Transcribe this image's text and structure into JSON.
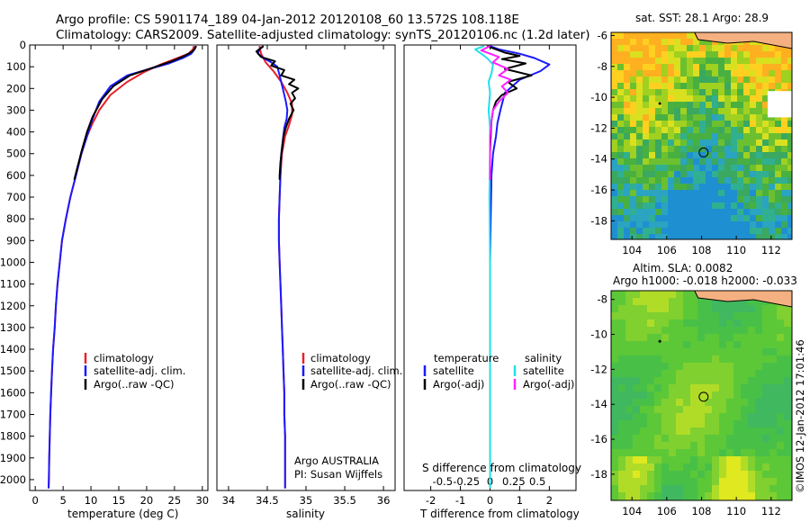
{
  "header": {
    "line1": "Argo profile: CS 5901174_189 04-Jan-2012 20120108_60 13.572S 108.118E",
    "line2": "Climatology: CARS2009. Satellite-adjusted climatology: synTS_20120106.nc (1.2d later)"
  },
  "colors": {
    "climatology": "#e8202a",
    "satellite": "#1a1aff",
    "argo": "#000000",
    "sal_satellite": "#22e0e8",
    "sal_argo": "#ff22ff"
  },
  "chart_data": [
    {
      "id": "temperature",
      "type": "line",
      "xlabel": "temperature (deg C)",
      "xlim": [
        -1,
        31
      ],
      "ylim": [
        2050,
        0
      ],
      "xticks": [
        0,
        5,
        10,
        15,
        20,
        25,
        30
      ],
      "yticks": [
        0,
        100,
        200,
        300,
        400,
        500,
        600,
        700,
        800,
        900,
        1000,
        1100,
        1200,
        1300,
        1400,
        1500,
        1600,
        1700,
        1800,
        1900,
        2000
      ],
      "legend": [
        "climatology",
        "satellite-adj. clim.",
        "Argo(..raw -QC)"
      ],
      "series": [
        {
          "name": "climatology",
          "color_key": "climatology",
          "points": [
            [
              28.5,
              5
            ],
            [
              28.3,
              20
            ],
            [
              27.5,
              40
            ],
            [
              25.5,
              60
            ],
            [
              22.5,
              90
            ],
            [
              19.5,
              125
            ],
            [
              16.5,
              170
            ],
            [
              13.5,
              230
            ],
            [
              11.5,
              300
            ],
            [
              10.3,
              360
            ],
            [
              9.3,
              420
            ],
            [
              8.3,
              500
            ],
            [
              7.3,
              600
            ],
            [
              6.3,
              700
            ],
            [
              5.5,
              800
            ],
            [
              4.8,
              900
            ],
            [
              4.4,
              1000
            ],
            [
              4.0,
              1100
            ],
            [
              3.7,
              1200
            ],
            [
              3.5,
              1300
            ],
            [
              3.2,
              1400
            ],
            [
              3.0,
              1500
            ],
            [
              2.85,
              1600
            ],
            [
              2.7,
              1700
            ],
            [
              2.6,
              1800
            ],
            [
              2.5,
              1900
            ],
            [
              2.45,
              2000
            ],
            [
              2.4,
              2040
            ]
          ]
        },
        {
          "name": "satellite-adj. clim.",
          "color_key": "satellite",
          "points": [
            [
              28.8,
              5
            ],
            [
              28.6,
              20
            ],
            [
              28.0,
              40
            ],
            [
              26.5,
              60
            ],
            [
              24.0,
              85
            ],
            [
              20.5,
              110
            ],
            [
              16.5,
              140
            ],
            [
              13.5,
              190
            ],
            [
              11.5,
              260
            ],
            [
              10.3,
              340
            ],
            [
              9.3,
              420
            ],
            [
              8.3,
              500
            ],
            [
              7.3,
              600
            ],
            [
              6.3,
              700
            ],
            [
              5.5,
              800
            ],
            [
              4.8,
              900
            ],
            [
              4.4,
              1000
            ],
            [
              4.0,
              1100
            ],
            [
              3.7,
              1200
            ],
            [
              3.5,
              1300
            ],
            [
              3.2,
              1400
            ],
            [
              3.0,
              1500
            ],
            [
              2.85,
              1600
            ],
            [
              2.7,
              1700
            ],
            [
              2.6,
              1800
            ],
            [
              2.5,
              1900
            ],
            [
              2.45,
              2000
            ],
            [
              2.4,
              2040
            ]
          ]
        },
        {
          "name": "Argo(..raw -QC)",
          "color_key": "argo",
          "points": [
            [
              28.9,
              5
            ],
            [
              28.7,
              15
            ],
            [
              28.2,
              30
            ],
            [
              26.8,
              50
            ],
            [
              24.5,
              75
            ],
            [
              21.0,
              105
            ],
            [
              17.0,
              140
            ],
            [
              14.0,
              190
            ],
            [
              12.0,
              250
            ],
            [
              10.3,
              330
            ],
            [
              9.3,
              400
            ],
            [
              8.4,
              480
            ],
            [
              7.6,
              560
            ],
            [
              7.0,
              620
            ]
          ]
        }
      ]
    },
    {
      "id": "salinity",
      "type": "line",
      "xlabel": "salinity",
      "xlim": [
        33.85,
        36.15
      ],
      "ylim": [
        2050,
        0
      ],
      "xticks": [
        34,
        34.5,
        35,
        35.5,
        36
      ],
      "legend": [
        "climatology",
        "satellite-adj. clim.",
        "Argo(..raw -QC)"
      ],
      "annotation": [
        "Argo AUSTRALIA",
        "PI: Susan Wijffels"
      ],
      "series": [
        {
          "name": "climatology",
          "color_key": "climatology",
          "points": [
            [
              34.4,
              5
            ],
            [
              34.42,
              40
            ],
            [
              34.48,
              80
            ],
            [
              34.58,
              120
            ],
            [
              34.68,
              170
            ],
            [
              34.76,
              220
            ],
            [
              34.82,
              270
            ],
            [
              34.82,
              320
            ],
            [
              34.78,
              370
            ],
            [
              34.73,
              420
            ],
            [
              34.69,
              500
            ],
            [
              34.67,
              600
            ],
            [
              34.66,
              700
            ],
            [
              34.65,
              800
            ],
            [
              34.65,
              900
            ],
            [
              34.66,
              1000
            ],
            [
              34.67,
              1100
            ],
            [
              34.68,
              1200
            ],
            [
              34.69,
              1300
            ],
            [
              34.7,
              1400
            ],
            [
              34.71,
              1500
            ],
            [
              34.72,
              1600
            ],
            [
              34.72,
              1700
            ],
            [
              34.73,
              1800
            ],
            [
              34.73,
              1900
            ],
            [
              34.73,
              2000
            ],
            [
              34.73,
              2040
            ]
          ]
        },
        {
          "name": "satellite-adj. clim.",
          "color_key": "satellite",
          "points": [
            [
              34.45,
              5
            ],
            [
              34.4,
              20
            ],
            [
              34.38,
              40
            ],
            [
              34.45,
              60
            ],
            [
              34.55,
              80
            ],
            [
              34.63,
              100
            ],
            [
              34.66,
              140
            ],
            [
              34.7,
              200
            ],
            [
              34.74,
              260
            ],
            [
              34.76,
              300
            ],
            [
              34.75,
              340
            ],
            [
              34.72,
              380
            ],
            [
              34.7,
              440
            ],
            [
              34.68,
              500
            ],
            [
              34.67,
              600
            ],
            [
              34.66,
              700
            ],
            [
              34.65,
              800
            ],
            [
              34.65,
              900
            ],
            [
              34.66,
              1000
            ],
            [
              34.67,
              1100
            ],
            [
              34.68,
              1200
            ],
            [
              34.69,
              1300
            ],
            [
              34.7,
              1400
            ],
            [
              34.71,
              1500
            ],
            [
              34.72,
              1600
            ],
            [
              34.72,
              1700
            ],
            [
              34.73,
              1800
            ],
            [
              34.73,
              1900
            ],
            [
              34.73,
              2000
            ],
            [
              34.73,
              2040
            ]
          ]
        },
        {
          "name": "Argo(..raw -QC)",
          "color_key": "argo",
          "points": [
            [
              34.45,
              5
            ],
            [
              34.36,
              30
            ],
            [
              34.42,
              55
            ],
            [
              34.6,
              75
            ],
            [
              34.55,
              95
            ],
            [
              34.72,
              115
            ],
            [
              34.68,
              140
            ],
            [
              34.85,
              160
            ],
            [
              34.78,
              180
            ],
            [
              34.9,
              200
            ],
            [
              34.82,
              220
            ],
            [
              34.86,
              245
            ],
            [
              34.8,
              270
            ],
            [
              34.84,
              300
            ],
            [
              34.78,
              340
            ],
            [
              34.74,
              380
            ],
            [
              34.71,
              420
            ],
            [
              34.69,
              480
            ],
            [
              34.67,
              540
            ],
            [
              34.66,
              600
            ],
            [
              34.66,
              620
            ]
          ]
        }
      ]
    },
    {
      "id": "difference",
      "type": "line",
      "xlabel": "T difference from climatology",
      "toplabel": "S difference from climatology",
      "xlim": [
        -2.9,
        2.9
      ],
      "ylim": [
        2050,
        0
      ],
      "xticks": [
        -2,
        -1,
        0,
        1,
        2
      ],
      "s_ticks": [
        "-0.5",
        "-0.25",
        "0",
        "0.25",
        "0.5"
      ],
      "legend_temperature": {
        "title": "temperature",
        "items": [
          "satellite",
          "Argo(-adj)"
        ]
      },
      "legend_salinity": {
        "title": "salinity",
        "items": [
          "satellite",
          "Argo(-adj)"
        ]
      },
      "series": [
        {
          "name": "temperature satellite",
          "color_key": "satellite",
          "points": [
            [
              0,
              5
            ],
            [
              0.3,
              20
            ],
            [
              1.0,
              40
            ],
            [
              1.5,
              60
            ],
            [
              2.0,
              90
            ],
            [
              1.7,
              120
            ],
            [
              1.0,
              160
            ],
            [
              0.5,
              220
            ],
            [
              0.35,
              300
            ],
            [
              0.25,
              360
            ],
            [
              0.2,
              420
            ],
            [
              0.1,
              500
            ],
            [
              0.05,
              600
            ],
            [
              0.02,
              800
            ],
            [
              0,
              1000
            ],
            [
              0,
              2040
            ]
          ]
        },
        {
          "name": "temperature Argo(-adj)",
          "color_key": "argo",
          "points": [
            [
              -0.1,
              5
            ],
            [
              0.2,
              20
            ],
            [
              0.5,
              35
            ],
            [
              1.0,
              50
            ],
            [
              0.4,
              65
            ],
            [
              1.2,
              85
            ],
            [
              0.5,
              110
            ],
            [
              1.4,
              140
            ],
            [
              0.6,
              170
            ],
            [
              0.9,
              200
            ],
            [
              0.4,
              230
            ],
            [
              0.2,
              260
            ],
            [
              0.1,
              300
            ],
            [
              0.05,
              350
            ],
            [
              0.02,
              420
            ],
            [
              0,
              500
            ],
            [
              0,
              620
            ]
          ]
        },
        {
          "name": "salinity satellite",
          "color_key": "sal_satellite",
          "points": [
            [
              -0.2,
              5
            ],
            [
              -0.5,
              20
            ],
            [
              -0.3,
              40
            ],
            [
              -0.1,
              60
            ],
            [
              0.1,
              90
            ],
            [
              0.05,
              130
            ],
            [
              -0.05,
              170
            ],
            [
              0,
              220
            ],
            [
              -0.05,
              300
            ],
            [
              0,
              380
            ],
            [
              0,
              500
            ],
            [
              -0.02,
              700
            ],
            [
              0,
              1000
            ],
            [
              0,
              2040
            ]
          ]
        },
        {
          "name": "salinity Argo(-adj)",
          "color_key": "sal_argo",
          "points": [
            [
              0,
              5
            ],
            [
              -0.3,
              25
            ],
            [
              0.3,
              55
            ],
            [
              0.1,
              80
            ],
            [
              0.6,
              110
            ],
            [
              0.3,
              140
            ],
            [
              0.7,
              160
            ],
            [
              0.4,
              190
            ],
            [
              0.6,
              220
            ],
            [
              0.3,
              260
            ],
            [
              0.1,
              300
            ],
            [
              0.05,
              350
            ],
            [
              0,
              420
            ],
            [
              0,
              620
            ]
          ]
        }
      ]
    }
  ],
  "maps": [
    {
      "id": "sst",
      "title": "sat. SST: 28.1  Argo: 28.9",
      "xlim": [
        102.8,
        113.2
      ],
      "ylim": [
        -19.2,
        -5.8
      ],
      "xticks": [
        104,
        106,
        108,
        110,
        112
      ],
      "yticks": [
        -6,
        -8,
        -10,
        -12,
        -14,
        -16,
        -18
      ],
      "marker": {
        "lon": 108.118,
        "lat": -13.572
      }
    },
    {
      "id": "sla",
      "title": "Altim. SLA: 0.0082",
      "subtitle": "Argo h1000: -0.018 h2000: -0.033",
      "xlim": [
        102.8,
        113.2
      ],
      "ylim": [
        -19.5,
        -7.5
      ],
      "xticks": [
        104,
        106,
        108,
        110,
        112
      ],
      "yticks": [
        -8,
        -10,
        -12,
        -14,
        -16,
        -18
      ],
      "marker": {
        "lon": 108.118,
        "lat": -13.572
      }
    }
  ],
  "stamp": "©IMOS 12-Jan-2012 17:01:46"
}
